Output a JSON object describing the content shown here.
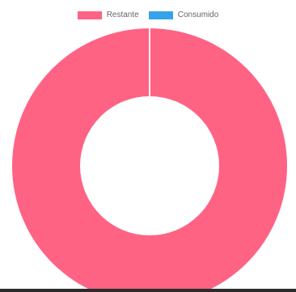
{
  "chart_data": {
    "type": "pie",
    "variant": "doughnut",
    "title": "",
    "labels": [
      "Restante",
      "Consumido"
    ],
    "values": [
      100,
      0
    ],
    "colors": [
      "#ff6384",
      "#36a2eb"
    ],
    "legend_position": "top",
    "border_color": "#ffffff"
  },
  "legend": {
    "items": [
      {
        "label": "Restante",
        "color": "#ff6384"
      },
      {
        "label": "Consumido",
        "color": "#36a2eb"
      }
    ]
  },
  "page": {
    "bottom_bar_color": "#2b2b2b"
  }
}
